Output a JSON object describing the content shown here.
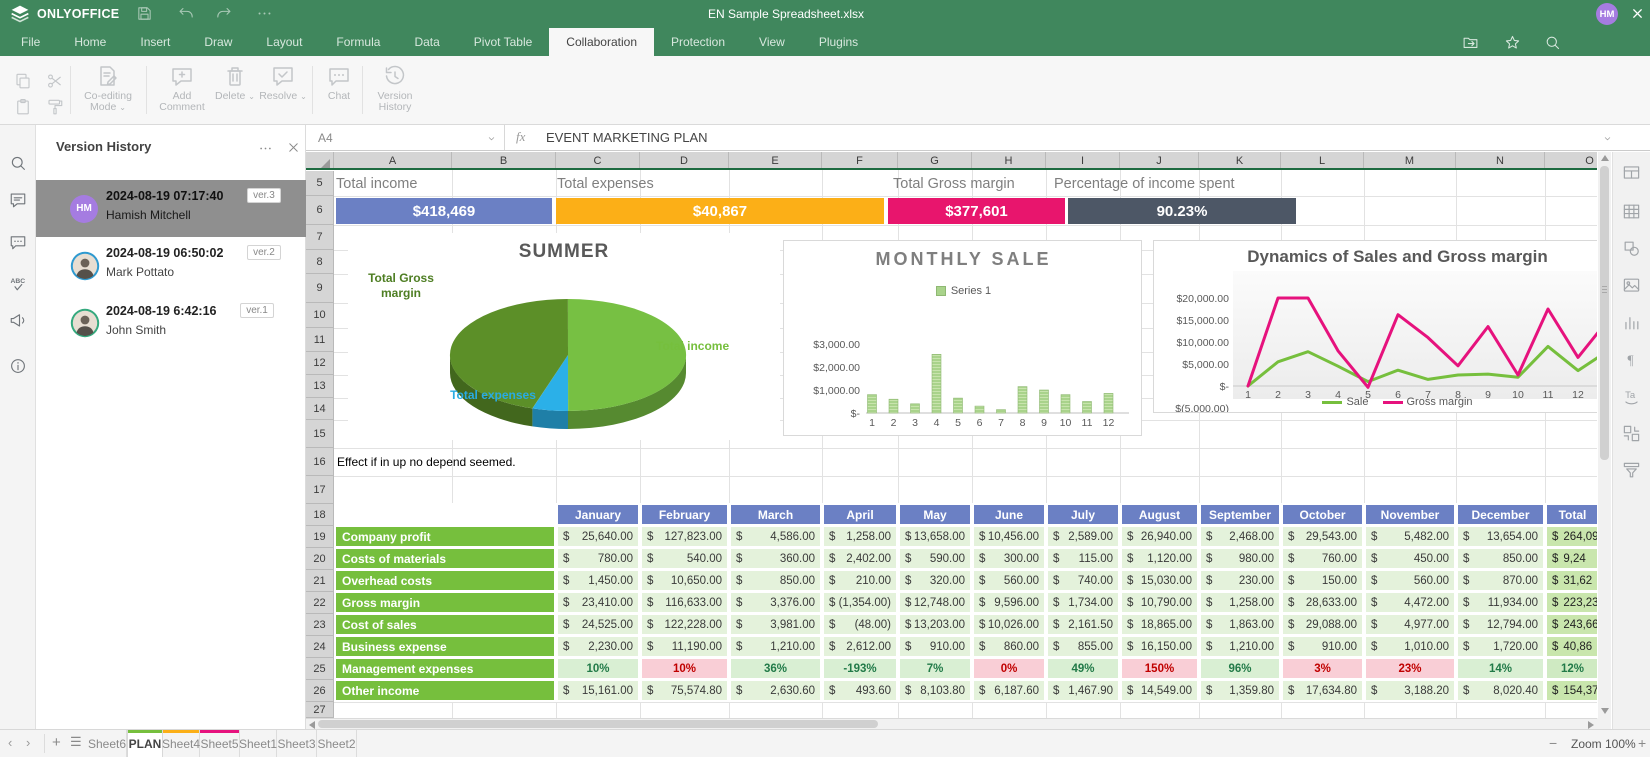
{
  "titlebar": {
    "brand": "ONLYOFFICE",
    "title": "EN Sample Spreadsheet.xlsx",
    "user_initials": "HM",
    "user_color": "#a57ce1",
    "icons": [
      "save",
      "undo",
      "redo",
      "more"
    ],
    "close_icon": "close"
  },
  "menu": {
    "tabs": [
      "File",
      "Home",
      "Insert",
      "Draw",
      "Layout",
      "Formula",
      "Data",
      "Pivot Table",
      "Collaboration",
      "Protection",
      "View",
      "Plugins"
    ],
    "active_tab": "Collaboration",
    "right_icons": [
      "open-location",
      "favorite-star",
      "search"
    ]
  },
  "toolbar": {
    "clipboard_icons": [
      "copy",
      "cut",
      "paste",
      "format-painter"
    ],
    "buttons": [
      {
        "icon": "coediting",
        "label": [
          "Co-editing",
          "Mode"
        ],
        "caret": true
      },
      {
        "icon": "add-comment",
        "label": [
          "Add",
          "Comment"
        ],
        "caret": false
      },
      {
        "icon": "delete",
        "label": [
          "Delete"
        ],
        "caret": true
      },
      {
        "icon": "resolve",
        "label": [
          "Resolve"
        ],
        "caret": true
      },
      {
        "icon": "chat",
        "label": [
          "Chat"
        ],
        "caret": false
      },
      {
        "icon": "version-history",
        "label": [
          "Version",
          "History"
        ],
        "caret": false
      }
    ]
  },
  "formula_bar": {
    "cell_ref": "A4",
    "fx": "fx",
    "content": "EVENT MARKETING PLAN"
  },
  "left_rail": [
    "search",
    "comments",
    "chat",
    "spellcheck",
    "feedback",
    "about"
  ],
  "right_rail": [
    "cell-settings",
    "table-settings",
    "shape-settings",
    "image-settings",
    "chart-settings",
    "paragraph-settings",
    "textart-settings",
    "pivot-settings",
    "slicer-settings"
  ],
  "version_history": {
    "title": "Version History",
    "entries": [
      {
        "date": "2024-08-19 07:17:40",
        "version": "ver.3",
        "name": "Hamish Mitchell",
        "initials": "HM",
        "avatar_color": "#a57ce1",
        "selected": true
      },
      {
        "date": "2024-08-19 06:50:02",
        "version": "ver.2",
        "name": "Mark Pottato",
        "ring": "#2f9ad0",
        "selected": false
      },
      {
        "date": "2024-08-19 6:42:16",
        "version": "ver.1",
        "name": "John Smith",
        "ring": "#35a97e",
        "selected": false
      }
    ]
  },
  "sheet": {
    "columns": [
      "A",
      "B",
      "C",
      "D",
      "E",
      "F",
      "G",
      "H",
      "I",
      "J",
      "K",
      "L",
      "M",
      "N",
      "O"
    ],
    "rows": [
      "5",
      "6",
      "7",
      "8",
      "9",
      "10",
      "11",
      "12",
      "13",
      "14",
      "15",
      "16",
      "17",
      "18",
      "19",
      "20",
      "21",
      "22",
      "23",
      "24",
      "25",
      "26",
      "27"
    ],
    "note": "Effect if in up no depend seemed."
  },
  "kpi": [
    {
      "label": "Total income",
      "value": "$418,469",
      "color": "#6b80c4"
    },
    {
      "label": "Total expenses",
      "value": "$40,867",
      "color": "#fcaf17"
    },
    {
      "label": "Total Gross margin",
      "value": "$377,601",
      "color": "#e8156d"
    },
    {
      "label": "Percentage of income spent",
      "value": "90.23%",
      "color": "#4d5766"
    }
  ],
  "chart_data": [
    {
      "type": "pie",
      "title": "SUMMER",
      "labels": [
        "Total income",
        "Total expenses",
        "Total Gross margin"
      ],
      "values": [
        418469,
        40867,
        377601
      ],
      "colors": [
        "#77c043",
        "#2bb0e8",
        "#5c8f28"
      ],
      "label_colors": [
        "#76bf3d",
        "#29abe2",
        "#4e7e23"
      ]
    },
    {
      "type": "bar",
      "title": "MONTHLY SALE",
      "legend": [
        "Series 1"
      ],
      "categories": [
        "1",
        "2",
        "3",
        "4",
        "5",
        "6",
        "7",
        "8",
        "9",
        "10",
        "11",
        "12"
      ],
      "values": [
        800,
        600,
        400,
        2550,
        650,
        300,
        150,
        1150,
        1000,
        800,
        500,
        850
      ],
      "ytick_labels": [
        "$3,000.00",
        "$2,000.00",
        "$1,000.00",
        "$-"
      ],
      "ylim": [
        0,
        3000
      ],
      "bar_color": "#a9d38b"
    },
    {
      "type": "line",
      "title": "Dynamics of Sales and Gross margin",
      "categories": [
        "1",
        "2",
        "3",
        "4",
        "5",
        "6",
        "7",
        "8",
        "9",
        "10",
        "11",
        "12"
      ],
      "series": [
        {
          "name": "Sale",
          "color": "#76bf3d",
          "values": [
            0,
            5500,
            7800,
            4500,
            1000,
            3600,
            1500,
            2500,
            2700,
            2000,
            9000,
            3500
          ]
        },
        {
          "name": "Gross margin",
          "color": "#e6127d",
          "values": [
            0,
            20000,
            20000,
            8000,
            -300,
            16200,
            11000,
            4600,
            13500,
            2500,
            17500,
            6500
          ]
        }
      ],
      "edge_tail": {
        "Sale": 8000,
        "Gross margin": 15000
      },
      "ytick_labels": [
        "$20,000.00",
        "$15,000.00",
        "$10,000.00",
        "$5,000.00",
        "$-",
        "$(5,000.00)"
      ],
      "ylim": [
        -5000,
        22500
      ],
      "legend_position": "bottom"
    }
  ],
  "table": {
    "headers": [
      "January",
      "February",
      "March",
      "April",
      "May",
      "June",
      "July",
      "August",
      "September",
      "October",
      "November",
      "December",
      "Total"
    ],
    "header_color": "#6b80c4",
    "label_color": "#76bf3d",
    "rows": [
      {
        "label": "Company profit",
        "currency": true,
        "values": [
          "25,640.00",
          "127,823.00",
          "4,586.00",
          "1,258.00",
          "13,658.00",
          "10,456.00",
          "2,589.00",
          "26,940.00",
          "2,468.00",
          "29,543.00",
          "5,482.00",
          "13,654.00"
        ],
        "total": "264,09"
      },
      {
        "label": "Costs of materials",
        "currency": true,
        "values": [
          "780.00",
          "540.00",
          "360.00",
          "2,402.00",
          "590.00",
          "300.00",
          "115.00",
          "1,120.00",
          "980.00",
          "760.00",
          "450.00",
          "850.00"
        ],
        "total": "9,24"
      },
      {
        "label": "Overhead costs",
        "currency": true,
        "values": [
          "1,450.00",
          "10,650.00",
          "850.00",
          "210.00",
          "320.00",
          "560.00",
          "740.00",
          "15,030.00",
          "230.00",
          "150.00",
          "560.00",
          "870.00"
        ],
        "total": "31,62"
      },
      {
        "label": "Gross margin",
        "currency": true,
        "values": [
          "23,410.00",
          "116,633.00",
          "3,376.00",
          "(1,354.00)",
          "12,748.00",
          "9,596.00",
          "1,734.00",
          "10,790.00",
          "1,258.00",
          "28,633.00",
          "4,472.00",
          "11,934.00"
        ],
        "total": "223,23"
      },
      {
        "label": "Cost of sales",
        "currency": true,
        "values": [
          "24,525.00",
          "122,228.00",
          "3,981.00",
          "(48.00)",
          "13,203.00",
          "10,026.00",
          "2,161.50",
          "18,865.00",
          "1,863.00",
          "29,088.00",
          "4,977.00",
          "12,794.00"
        ],
        "total": "243,66"
      },
      {
        "label": "Business expense",
        "currency": true,
        "values": [
          "2,230.00",
          "11,190.00",
          "1,210.00",
          "2,612.00",
          "910.00",
          "860.00",
          "855.00",
          "16,150.00",
          "1,210.00",
          "910.00",
          "1,010.00",
          "1,720.00"
        ],
        "total": "40,86"
      },
      {
        "label": "Management expenses",
        "percent": true,
        "values": [
          "10%",
          "10%",
          "36%",
          "-193%",
          "7%",
          "0%",
          "49%",
          "150%",
          "96%",
          "3%",
          "23%",
          "14%"
        ],
        "styles": [
          "pos",
          "neg",
          "pos",
          "pos",
          "pos",
          "neg",
          "pos",
          "neg",
          "pos",
          "neg",
          "neg",
          "pos"
        ],
        "total": "12%",
        "total_style": "pos"
      },
      {
        "label": "Other income",
        "currency": true,
        "values": [
          "15,161.00",
          "75,574.80",
          "2,630.60",
          "493.60",
          "8,103.80",
          "6,187.60",
          "1,467.90",
          "14,549.00",
          "1,359.80",
          "17,634.80",
          "3,188.20",
          "8,020.40"
        ],
        "total": "154,37"
      }
    ]
  },
  "status_bar": {
    "sheet_tabs": [
      {
        "name": "Sheet6",
        "active": false,
        "stripe": ""
      },
      {
        "name": "PLAN",
        "active": true,
        "stripe": "#76bf3d"
      },
      {
        "name": "Sheet4",
        "active": false,
        "stripe": "#fbaf17"
      },
      {
        "name": "Sheet5",
        "active": false,
        "stripe": "#e6127d"
      },
      {
        "name": "Sheet1",
        "active": false,
        "stripe": ""
      },
      {
        "name": "Sheet3",
        "active": false,
        "stripe": ""
      },
      {
        "name": "Sheet2",
        "active": false,
        "stripe": ""
      }
    ],
    "zoom_minus": "−",
    "zoom_label": "Zoom 100%",
    "zoom_plus": "+"
  }
}
